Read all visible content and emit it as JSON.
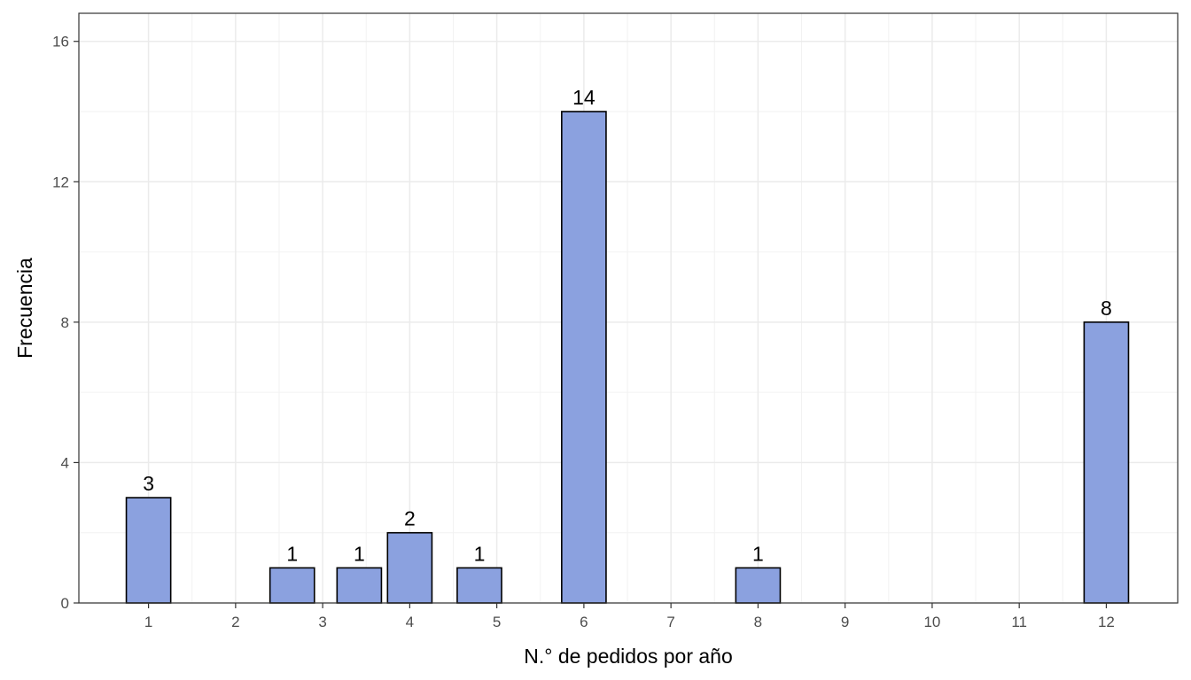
{
  "chart_data": {
    "type": "bar",
    "title": "",
    "xlabel": "N.° de pedidos por año",
    "ylabel": "Frecuencia",
    "x_ticks": [
      1,
      2,
      3,
      4,
      5,
      6,
      7,
      8,
      9,
      10,
      11,
      12
    ],
    "y_ticks": [
      0,
      4,
      8,
      12,
      16
    ],
    "xlim": [
      0.2,
      12.82
    ],
    "ylim": [
      0,
      16.8
    ],
    "grid": true,
    "bar_color": "#8ba1df",
    "bar_border_color": "#000000",
    "bars": [
      {
        "x": 1.0,
        "value": 3,
        "label": "3"
      },
      {
        "x": 2.65,
        "value": 1,
        "label": "1"
      },
      {
        "x": 3.42,
        "value": 1,
        "label": "1"
      },
      {
        "x": 4.0,
        "value": 2,
        "label": "2"
      },
      {
        "x": 4.8,
        "value": 1,
        "label": "1"
      },
      {
        "x": 6.0,
        "value": 14,
        "label": "14"
      },
      {
        "x": 8.0,
        "value": 1,
        "label": "1"
      },
      {
        "x": 12.0,
        "value": 8,
        "label": "8"
      }
    ]
  }
}
